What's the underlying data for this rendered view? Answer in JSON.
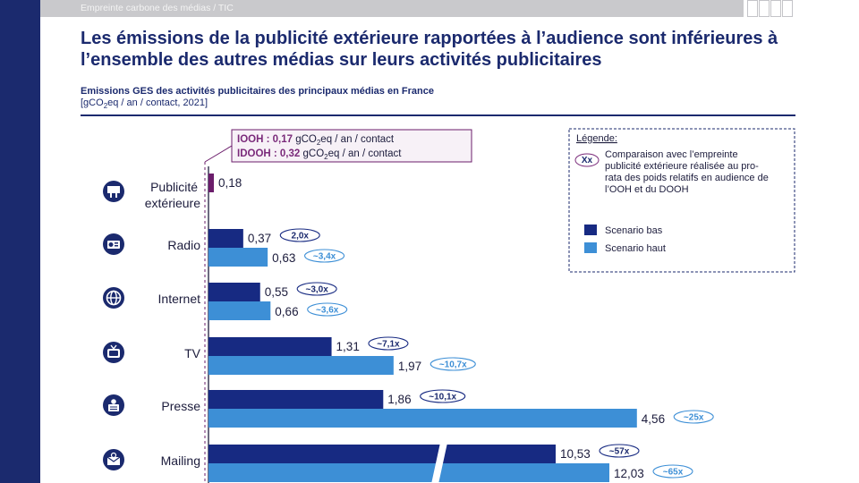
{
  "header": {
    "breadcrumb": "Empreinte carbone des médias / TIC"
  },
  "title": "Les émissions de la publicité extérieure rapportées à l’audience sont inférieures à l’ensemble des autres médias sur leurs activités publicitaires",
  "chart_title": "Emissions GES des activités publicitaires des principaux médias en France",
  "unit_prefix": "[gCO",
  "unit_sub": "2",
  "unit_suffix": "eq / an / contact, 2021]",
  "reference_box": {
    "ooh_label": "OOH : 0,17",
    "dooh_label": "DOOH : 0,32",
    "unit_prefix": " gCO",
    "unit_sub": "2",
    "unit_suffix": "eq / an / contact"
  },
  "legend": {
    "title": "Légende:",
    "bubble_symbol": "Xx",
    "bubble_text_lines": [
      "Comparaison avec l’empreinte",
      "publicité extérieure réalisée au pro-",
      "rata des poids relatifs en audience de",
      "l’OOH et du DOOH"
    ],
    "low_label": "Scenario bas",
    "high_label": "Scenario haut"
  },
  "colors": {
    "low": "#172a82",
    "high": "#3d8fd6",
    "ooh": "#6b1d6b",
    "band": "#1b2a6e",
    "icon": "#1b2a6e"
  },
  "chart_data": {
    "type": "bar",
    "orientation": "horizontal",
    "title": "Emissions GES des activités publicitaires des principaux médias en France",
    "unit": "gCO2eq / an / contact, 2021",
    "reference_lines": [
      {
        "name": "OOH",
        "value": 0.17
      },
      {
        "name": "DOOH",
        "value": 0.32
      }
    ],
    "categories": [
      {
        "name": "Publicité extérieure",
        "lines": [
          "Publicité",
          "extérieure"
        ],
        "icon": "billboard-icon",
        "low": 0.18,
        "low_label": "0,18",
        "high": null,
        "high_label": "",
        "low_ratio": "",
        "high_ratio": ""
      },
      {
        "name": "Radio",
        "lines": [
          "Radio"
        ],
        "icon": "radio-icon",
        "low": 0.37,
        "low_label": "0,37",
        "high": 0.63,
        "high_label": "0,63",
        "low_ratio": "2,0x",
        "high_ratio": "~3,4x"
      },
      {
        "name": "Internet",
        "lines": [
          "Internet"
        ],
        "icon": "globe-icon",
        "low": 0.55,
        "low_label": "0,55",
        "high": 0.66,
        "high_label": "0,66",
        "low_ratio": "~3,0x",
        "high_ratio": "~3,6x"
      },
      {
        "name": "TV",
        "lines": [
          "TV"
        ],
        "icon": "tv-icon",
        "low": 1.31,
        "low_label": "1,31",
        "high": 1.97,
        "high_label": "1,97",
        "low_ratio": "~7,1x",
        "high_ratio": "~10,7x"
      },
      {
        "name": "Presse",
        "lines": [
          "Presse"
        ],
        "icon": "newspaper-icon",
        "low": 1.86,
        "low_label": "1,86",
        "high": 4.56,
        "high_label": "4,56",
        "low_ratio": "~10,1x",
        "high_ratio": "~25x"
      },
      {
        "name": "Mailing",
        "lines": [
          "Mailing"
        ],
        "icon": "mail-icon",
        "low": 10.53,
        "low_label": "10,53",
        "high": 12.03,
        "high_label": "12,03",
        "low_ratio": "~57x",
        "high_ratio": "~65x"
      }
    ],
    "series": [
      {
        "name": "Scenario bas",
        "key": "low"
      },
      {
        "name": "Scenario haut",
        "key": "high"
      }
    ],
    "axis_break": true,
    "legend_position": "top-right"
  }
}
